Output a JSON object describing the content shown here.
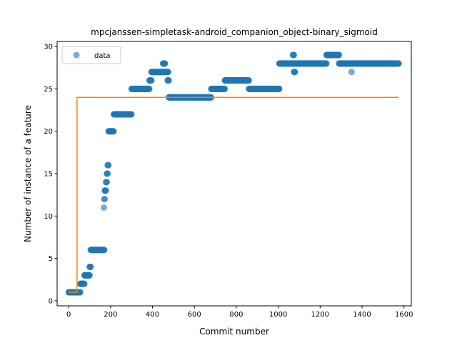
{
  "chart_data": {
    "type": "scatter",
    "title": "mpcjanssen-simpletask-android_companion_object-binary_sigmoid",
    "xlabel": "Commit number",
    "ylabel": "Number of instance of a feature",
    "xlim": [
      -55,
      1635
    ],
    "ylim": [
      -0.6,
      30.6
    ],
    "xticks": [
      0,
      200,
      400,
      600,
      800,
      1000,
      1200,
      1400,
      1600
    ],
    "yticks": [
      0,
      5,
      10,
      15,
      20,
      25,
      30
    ],
    "grid": false,
    "legend": {
      "position": "top-left",
      "entries": [
        "data"
      ]
    },
    "series": [
      {
        "name": "data",
        "kind": "scatter",
        "color": "#1f77b4",
        "segments": [
          {
            "x_start": 0,
            "x_end": 55,
            "y": 1
          },
          {
            "x_start": 55,
            "x_end": 75,
            "y": 2
          },
          {
            "x_start": 75,
            "x_end": 100,
            "y": 3
          },
          {
            "x_start": 100,
            "x_end": 105,
            "y": 4
          },
          {
            "x_start": 105,
            "x_end": 170,
            "y": 6
          },
          {
            "x_start": 168,
            "x_end": 168,
            "y": 11
          },
          {
            "x_start": 170,
            "x_end": 172,
            "y": 12
          },
          {
            "x_start": 172,
            "x_end": 178,
            "y": 13
          },
          {
            "x_start": 178,
            "x_end": 182,
            "y": 14
          },
          {
            "x_start": 182,
            "x_end": 186,
            "y": 15
          },
          {
            "x_start": 186,
            "x_end": 190,
            "y": 16
          },
          {
            "x_start": 190,
            "x_end": 215,
            "y": 20
          },
          {
            "x_start": 215,
            "x_end": 300,
            "y": 22
          },
          {
            "x_start": 300,
            "x_end": 385,
            "y": 25
          },
          {
            "x_start": 385,
            "x_end": 395,
            "y": 26
          },
          {
            "x_start": 395,
            "x_end": 475,
            "y": 27
          },
          {
            "x_start": 450,
            "x_end": 460,
            "y": 28
          },
          {
            "x_start": 472,
            "x_end": 478,
            "y": 26
          },
          {
            "x_start": 478,
            "x_end": 680,
            "y": 24
          },
          {
            "x_start": 680,
            "x_end": 745,
            "y": 25
          },
          {
            "x_start": 745,
            "x_end": 860,
            "y": 26
          },
          {
            "x_start": 860,
            "x_end": 1005,
            "y": 25
          },
          {
            "x_start": 1005,
            "x_end": 1230,
            "y": 28
          },
          {
            "x_start": 1070,
            "x_end": 1075,
            "y": 29
          },
          {
            "x_start": 1075,
            "x_end": 1080,
            "y": 27
          },
          {
            "x_start": 1230,
            "x_end": 1290,
            "y": 29
          },
          {
            "x_start": 1290,
            "x_end": 1575,
            "y": 28
          },
          {
            "x_start": 1350,
            "x_end": 1350,
            "y": 27
          }
        ]
      },
      {
        "name": "",
        "kind": "line",
        "color": "#ff7f0e",
        "x": [
          0,
          40,
          40,
          1575
        ],
        "y": [
          1,
          1,
          24,
          24
        ]
      }
    ]
  }
}
